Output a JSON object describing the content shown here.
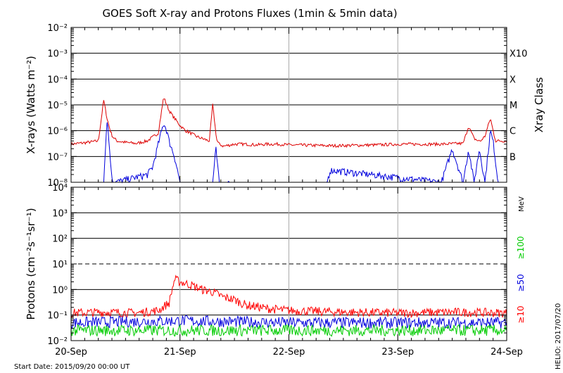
{
  "chart_data": [
    {
      "type": "line",
      "title": "GOES Soft X-ray and Protons Fluxes   (1min & 5min data)",
      "ylabel": "X-rays (Watts m⁻²)",
      "yscale": "log",
      "ylim": [
        1e-08,
        0.01
      ],
      "ytick_labels": [
        "10⁻²",
        "10⁻³",
        "10⁻⁴",
        "10⁻⁵",
        "10⁻⁶",
        "10⁻⁷",
        "10⁻⁸"
      ],
      "right_axis_label": "Xray Class",
      "class_labels": [
        {
          "label": "X10",
          "value": 0.001
        },
        {
          "label": "X",
          "value": 0.0001
        },
        {
          "label": "M",
          "value": 1e-05
        },
        {
          "label": "C",
          "value": 1e-06
        },
        {
          "label": "B",
          "value": 1e-07
        }
      ],
      "xlim": [
        "2015-09-20 00:00",
        "2015-09-24 00:00"
      ],
      "series": [
        {
          "color": "#dd0000",
          "x_days": [
            0.0,
            0.15,
            0.25,
            0.3,
            0.33,
            0.36,
            0.38,
            0.42,
            0.5,
            0.6,
            0.7,
            0.8,
            0.85,
            0.9,
            0.95,
            1.0,
            1.05,
            1.1,
            1.15,
            1.2,
            1.27,
            1.3,
            1.33,
            1.34,
            1.36,
            1.4,
            1.5,
            1.6,
            1.7,
            1.8,
            1.9,
            2.0,
            2.2,
            2.4,
            2.6,
            2.8,
            3.0,
            3.2,
            3.4,
            3.6,
            3.65,
            3.7,
            3.74,
            3.76,
            3.8,
            3.85,
            3.88,
            3.9,
            3.95,
            4.0
          ],
          "values": [
            3e-07,
            3.5e-07,
            4e-07,
            1.5e-05,
            3e-06,
            1e-06,
            6e-07,
            4e-07,
            3.5e-07,
            3.2e-07,
            4e-07,
            8e-07,
            2e-05,
            6e-06,
            3e-06,
            1.6e-06,
            1e-06,
            8e-07,
            6e-07,
            5e-07,
            4e-07,
            1e-05,
            8e-07,
            4e-07,
            3e-07,
            2.5e-07,
            3e-07,
            3e-07,
            2.8e-07,
            3e-07,
            3e-07,
            2.8e-07,
            2.7e-07,
            2.6e-07,
            2.7e-07,
            2.8e-07,
            3e-07,
            3e-07,
            3e-07,
            3.2e-07,
            1.5e-06,
            5e-07,
            4e-07,
            4e-07,
            6e-07,
            3e-06,
            8e-07,
            4e-07,
            4e-07,
            4e-07
          ]
        },
        {
          "color": "#0000dd",
          "x_days": [
            0.3,
            0.33,
            0.38,
            0.4,
            0.7,
            0.75,
            0.8,
            0.85,
            0.88,
            0.9,
            0.95,
            1.0,
            1.05,
            1.3,
            1.33,
            1.36,
            2.35,
            2.38,
            3.4,
            3.5,
            3.6,
            3.65,
            3.7,
            3.75,
            3.8,
            3.85,
            3.88,
            3.92
          ],
          "values": [
            1e-08,
            3e-06,
            1e-08,
            1e-08,
            2e-08,
            4e-08,
            3e-07,
            2e-06,
            1e-06,
            4e-07,
            1e-07,
            1e-08,
            1e-08,
            1e-08,
            2e-07,
            1e-08,
            1e-08,
            3e-08,
            1e-08,
            2e-07,
            1e-08,
            2e-07,
            1e-08,
            2e-07,
            1e-08,
            1e-06,
            3e-07,
            1e-08
          ]
        }
      ],
      "grid": true
    },
    {
      "type": "line",
      "ylabel": "Protons (cm⁻²s⁻¹sr⁻¹)",
      "yscale": "log",
      "ylim": [
        0.01,
        10000
      ],
      "ytick_labels": [
        "10⁴",
        "10³",
        "10²",
        "10¹",
        "10⁰",
        "10⁻¹",
        "10⁻²"
      ],
      "threshold": 10,
      "right_unit": "MeV",
      "legend_position": "right-vertical",
      "xlim": [
        "2015-09-20 00:00",
        "2015-09-24 00:00"
      ],
      "x_tick_labels": [
        "20-Sep",
        "21-Sep",
        "22-Sep",
        "23-Sep",
        "24-Sep"
      ],
      "series": [
        {
          "name": "≥10",
          "color": "#ff0000",
          "x_days": [
            0.0,
            0.3,
            0.6,
            0.8,
            0.9,
            0.95,
            1.0,
            1.1,
            1.2,
            1.3,
            1.4,
            1.5,
            1.6,
            1.8,
            2.0,
            2.5,
            3.0,
            3.5,
            4.0
          ],
          "values": [
            0.12,
            0.13,
            0.12,
            0.15,
            0.3,
            2.5,
            2.0,
            1.5,
            1.0,
            0.8,
            0.5,
            0.4,
            0.25,
            0.18,
            0.15,
            0.13,
            0.12,
            0.13,
            0.12
          ]
        },
        {
          "name": "≥50",
          "color": "#0000dd",
          "x_days": [
            0.0,
            1.0,
            2.0,
            3.0,
            4.0
          ],
          "values": [
            0.05,
            0.06,
            0.05,
            0.05,
            0.05
          ]
        },
        {
          "name": "≥100",
          "color": "#00cc00",
          "x_days": [
            0.0,
            1.0,
            2.0,
            3.0,
            4.0
          ],
          "values": [
            0.025,
            0.025,
            0.025,
            0.025,
            0.025
          ]
        }
      ],
      "grid": true
    }
  ],
  "footer": {
    "start_date": "Start Date: 2015/09/20 00:00 UT",
    "credit": "HELIO: 2017/07/20"
  }
}
